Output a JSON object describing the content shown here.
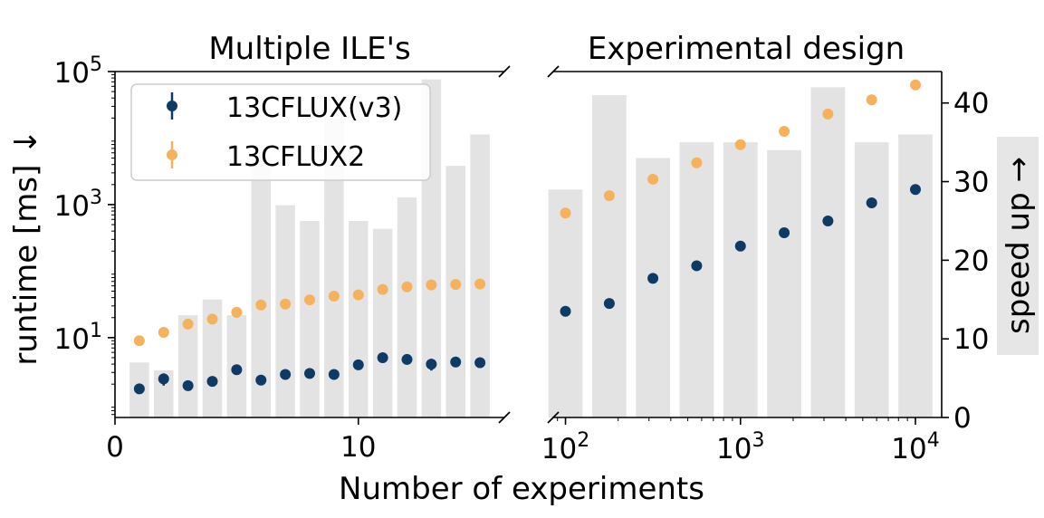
{
  "chart_data": [
    {
      "type": "scatter",
      "title": "Multiple ILE's",
      "xlabel": "Number of experiments",
      "ylabel": "runtime [ms] ↓",
      "y2label": "speed up →",
      "y_scale": "log",
      "xlim": [
        0,
        16
      ],
      "ylim_log10": [
        -0.2,
        5
      ],
      "y2lim": [
        0,
        44
      ],
      "x_ticks": [
        {
          "value": 0,
          "label": "0"
        },
        {
          "value": 10,
          "label": "10"
        }
      ],
      "y_ticks": [
        {
          "exp": 1,
          "label": "10",
          "sup": "1"
        },
        {
          "exp": 3,
          "label": "10",
          "sup": "3"
        },
        {
          "exp": 5,
          "label": "10",
          "sup": "5"
        }
      ],
      "legend": {
        "placement": "top-left",
        "entries": [
          "13CFLUX(v3)",
          "13CFLUX2"
        ]
      },
      "x": [
        1,
        2,
        3,
        4,
        5,
        6,
        7,
        8,
        9,
        10,
        11,
        12,
        13,
        14,
        15
      ],
      "speed_up": [
        7,
        6,
        13,
        15,
        13,
        33,
        27,
        25,
        38,
        25,
        24,
        28,
        43,
        32,
        36
      ],
      "series": [
        {
          "name": "13CFLUX(v3)",
          "color": "#0d3b66",
          "values": [
            1.7,
            2.4,
            1.9,
            2.2,
            3.3,
            2.3,
            2.8,
            2.9,
            2.8,
            3.9,
            5.0,
            4.7,
            4.0,
            4.3,
            4.2
          ],
          "err_low": [
            1.55,
            1.9,
            1.75,
            1.95,
            3.0,
            2.05,
            2.6,
            2.7,
            2.6,
            3.6,
            4.4,
            4.3,
            3.2,
            4.0,
            3.9
          ],
          "err_high": [
            1.85,
            2.9,
            2.05,
            2.45,
            3.6,
            2.55,
            3.0,
            3.1,
            3.0,
            4.2,
            5.6,
            5.1,
            4.8,
            4.6,
            4.5
          ]
        },
        {
          "name": "13CFLUX2",
          "color": "#f6b15c",
          "values": [
            9,
            12,
            16,
            19,
            24,
            31,
            32,
            37,
            42,
            44,
            53,
            58,
            62,
            63,
            64
          ],
          "err_low": [
            8.4,
            10.5,
            15,
            17.5,
            20,
            29,
            30,
            34.5,
            39.5,
            41.5,
            49,
            54.5,
            59,
            60,
            58
          ],
          "err_high": [
            9.6,
            13.5,
            17,
            20.5,
            28,
            33,
            34,
            39.5,
            44.5,
            46.5,
            57,
            61.5,
            65,
            66,
            70
          ]
        }
      ]
    },
    {
      "type": "scatter",
      "title": "Experimental design",
      "xlabel": "Number of experiments",
      "y2label": "speed up →",
      "x_scale": "log",
      "xlim_log10": [
        1.93,
        4.15
      ],
      "y2lim": [
        0,
        44
      ],
      "x_ticks": [
        {
          "exp": 2,
          "label": "10",
          "sup": "2"
        },
        {
          "exp": 3,
          "label": "10",
          "sup": "3"
        },
        {
          "exp": 4,
          "label": "10",
          "sup": "4"
        }
      ],
      "y2_ticks": [
        0,
        10,
        20,
        30,
        40
      ],
      "x": [
        100,
        178,
        316,
        562,
        1000,
        1778,
        3162,
        5623,
        10000
      ],
      "speed_up": [
        29,
        41,
        33,
        35,
        35,
        34,
        42,
        35,
        36
      ],
      "series": [
        {
          "name": "13CFLUX(v3)",
          "color": "#0d3b66",
          "values": [
            13.5,
            14.5,
            17.7,
            19.3,
            21.8,
            23.5,
            25.0,
            27.3,
            29.0
          ]
        },
        {
          "name": "13CFLUX2",
          "color": "#f6b15c",
          "values": [
            26.0,
            28.2,
            30.3,
            32.4,
            34.7,
            36.4,
            38.6,
            40.4,
            42.3
          ]
        }
      ]
    }
  ]
}
